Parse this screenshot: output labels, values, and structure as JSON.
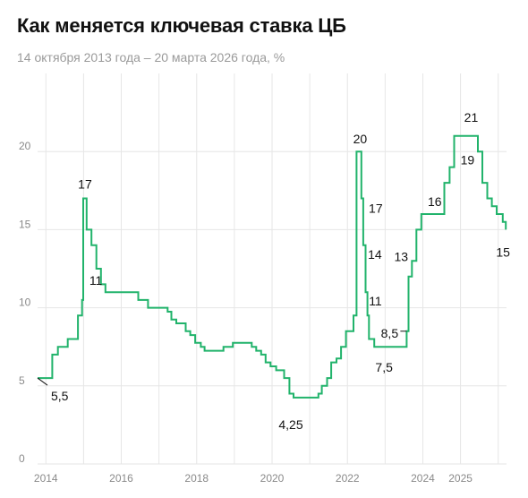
{
  "header": {
    "title": "Как меняется ключевая ставка ЦБ",
    "subtitle": "14 октября 2013 года – 20 марта 2026 года, %"
  },
  "chart_data": {
    "type": "line",
    "step": true,
    "title": "Как меняется ключевая ставка ЦБ",
    "subtitle": "14 октября 2013 года – 20 марта 2026 года, %",
    "xlabel": "",
    "ylabel": "",
    "xlim": [
      2013.78,
      2026.22
    ],
    "ylim": [
      0,
      25
    ],
    "y_ticks": [
      0,
      5,
      10,
      15,
      20
    ],
    "y_tick_labels": [
      "0",
      "5",
      "10",
      "15",
      "20"
    ],
    "x_ticks": [
      2014,
      2016,
      2018,
      2020,
      2022,
      2024,
      2025
    ],
    "x_tick_labels": [
      "2014",
      "2016",
      "2018",
      "2020",
      "2022",
      "2024",
      "2025"
    ],
    "grid": true,
    "line_color": "#21b36b",
    "grid_color": "#e6e6e6",
    "series": [
      {
        "points": [
          [
            2013.78,
            5.5
          ],
          [
            2014.17,
            7.0
          ],
          [
            2014.32,
            7.5
          ],
          [
            2014.58,
            8.0
          ],
          [
            2014.85,
            9.5
          ],
          [
            2014.96,
            10.5
          ],
          [
            2014.99,
            17.0
          ],
          [
            2015.08,
            15.0
          ],
          [
            2015.21,
            14.0
          ],
          [
            2015.34,
            12.5
          ],
          [
            2015.46,
            11.5
          ],
          [
            2015.58,
            11.0
          ],
          [
            2016.45,
            10.5
          ],
          [
            2016.71,
            10.0
          ],
          [
            2017.23,
            9.75
          ],
          [
            2017.33,
            9.25
          ],
          [
            2017.46,
            9.0
          ],
          [
            2017.71,
            8.5
          ],
          [
            2017.83,
            8.25
          ],
          [
            2017.96,
            7.75
          ],
          [
            2018.11,
            7.5
          ],
          [
            2018.21,
            7.25
          ],
          [
            2018.71,
            7.5
          ],
          [
            2018.96,
            7.75
          ],
          [
            2019.46,
            7.5
          ],
          [
            2019.58,
            7.25
          ],
          [
            2019.71,
            7.0
          ],
          [
            2019.83,
            6.5
          ],
          [
            2019.96,
            6.25
          ],
          [
            2020.11,
            6.0
          ],
          [
            2020.32,
            5.5
          ],
          [
            2020.46,
            4.5
          ],
          [
            2020.57,
            4.25
          ],
          [
            2021.23,
            4.5
          ],
          [
            2021.32,
            5.0
          ],
          [
            2021.46,
            5.5
          ],
          [
            2021.57,
            6.5
          ],
          [
            2021.71,
            6.75
          ],
          [
            2021.83,
            7.5
          ],
          [
            2021.96,
            8.5
          ],
          [
            2022.16,
            9.5
          ],
          [
            2022.24,
            20.0
          ],
          [
            2022.37,
            17.0
          ],
          [
            2022.42,
            14.0
          ],
          [
            2022.48,
            11.0
          ],
          [
            2022.53,
            9.5
          ],
          [
            2022.57,
            8.0
          ],
          [
            2022.71,
            7.5
          ],
          [
            2023.57,
            8.5
          ],
          [
            2023.62,
            12.0
          ],
          [
            2023.71,
            13.0
          ],
          [
            2023.83,
            15.0
          ],
          [
            2023.96,
            16.0
          ],
          [
            2024.57,
            18.0
          ],
          [
            2024.71,
            19.0
          ],
          [
            2024.83,
            21.0
          ],
          [
            2025.46,
            20.0
          ],
          [
            2025.58,
            18.0
          ],
          [
            2025.71,
            17.0
          ],
          [
            2025.83,
            16.5
          ],
          [
            2025.96,
            16.0
          ],
          [
            2026.12,
            15.5
          ],
          [
            2026.2,
            15.0
          ]
        ]
      }
    ],
    "annotations": [
      {
        "label": "5,5",
        "x": 2013.78,
        "y": 5.5
      },
      {
        "label": "17",
        "x": 2014.99,
        "y": 17.0
      },
      {
        "label": "11",
        "x": 2015.58,
        "y": 11.0
      },
      {
        "label": "4,25",
        "x": 2020.57,
        "y": 4.25
      },
      {
        "label": "20",
        "x": 2022.24,
        "y": 20.0
      },
      {
        "label": "17",
        "x": 2022.37,
        "y": 17.0
      },
      {
        "label": "14",
        "x": 2022.42,
        "y": 14.0
      },
      {
        "label": "11",
        "x": 2022.48,
        "y": 11.0
      },
      {
        "label": "7,5",
        "x": 2022.71,
        "y": 7.5
      },
      {
        "label": "8,5",
        "x": 2023.57,
        "y": 8.5
      },
      {
        "label": "13",
        "x": 2023.71,
        "y": 13.0
      },
      {
        "label": "16",
        "x": 2023.96,
        "y": 16.0
      },
      {
        "label": "19",
        "x": 2024.71,
        "y": 19.0
      },
      {
        "label": "21",
        "x": 2024.83,
        "y": 21.0
      },
      {
        "label": "15",
        "x": 2026.2,
        "y": 15.0
      }
    ]
  }
}
